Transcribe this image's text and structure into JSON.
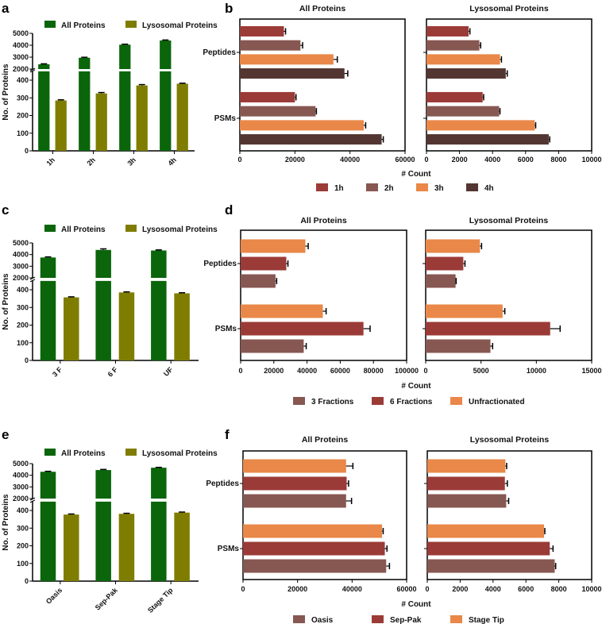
{
  "panel_letters": [
    "a",
    "b",
    "c",
    "d",
    "e",
    "f"
  ],
  "chart_data": [
    {
      "panel": "a",
      "type": "bar",
      "orientation": "vertical",
      "categories": [
        "1h",
        "2h",
        "3h",
        "4h"
      ],
      "ylabel": "No. of Proteins",
      "y_axis_break": [
        450,
        2000
      ],
      "y_ticks_lower": [
        "0",
        "100",
        "200",
        "300",
        "400"
      ],
      "y_ticks_upper": [
        "2000",
        "3000",
        "4000",
        "5000"
      ],
      "legend": "top",
      "series": [
        {
          "name": "All Proteins",
          "color": "#0b650b",
          "values": [
            2400,
            2950,
            4050,
            4400
          ],
          "errors": [
            40,
            40,
            40,
            40
          ]
        },
        {
          "name": "Lysosomal Proteins",
          "color": "#7f7d00",
          "values": [
            285,
            325,
            370,
            380
          ],
          "errors": [
            4,
            5,
            5,
            3
          ]
        }
      ]
    },
    {
      "panel": "b",
      "type": "bar",
      "orientation": "horizontal",
      "xlabel": "# Count",
      "categories": [
        "Peptides",
        "PSMs"
      ],
      "legend": [
        {
          "name": "1h",
          "color": "#9b3b37"
        },
        {
          "name": "2h",
          "color": "#875752"
        },
        {
          "name": "3h",
          "color": "#e98848"
        },
        {
          "name": "4h",
          "color": "#533631"
        }
      ],
      "subplots": [
        {
          "title": "All Proteins",
          "xlim": [
            0,
            60000
          ],
          "xticks": [
            "0",
            "20000",
            "40000",
            "60000"
          ],
          "series": [
            {
              "name": "1h",
              "values": [
                16000,
                20000
              ],
              "errors": [
                600,
                400
              ]
            },
            {
              "name": "2h",
              "values": [
                22000,
                27500
              ],
              "errors": [
                800,
                300
              ]
            },
            {
              "name": "3h",
              "values": [
                34000,
                45000
              ],
              "errors": [
                1400,
                700
              ]
            },
            {
              "name": "4h",
              "values": [
                38000,
                51500
              ],
              "errors": [
                1200,
                600
              ]
            }
          ]
        },
        {
          "title": "Lysosomal Proteins",
          "xlim": [
            0,
            10000
          ],
          "xticks": [
            "0",
            "2000",
            "4000",
            "6000",
            "8000",
            "10000"
          ],
          "series": [
            {
              "name": "1h",
              "values": [
                2550,
                3400
              ],
              "errors": [
                80,
                60
              ]
            },
            {
              "name": "2h",
              "values": [
                3200,
                4400
              ],
              "errors": [
                80,
                50
              ]
            },
            {
              "name": "3h",
              "values": [
                4450,
                6550
              ],
              "errors": [
                90,
                60
              ]
            },
            {
              "name": "4h",
              "values": [
                4800,
                7400
              ],
              "errors": [
                90,
                60
              ]
            }
          ]
        }
      ]
    },
    {
      "panel": "c",
      "type": "bar",
      "orientation": "vertical",
      "categories": [
        "3 F",
        "6 F",
        "UF"
      ],
      "ylabel": "No. of Proteins",
      "y_axis_break": [
        450,
        2000
      ],
      "y_ticks_lower": [
        "0",
        "100",
        "200",
        "300",
        "400"
      ],
      "y_ticks_upper": [
        "2000",
        "3000",
        "4000",
        "5000"
      ],
      "legend": "top",
      "series": [
        {
          "name": "All Proteins",
          "color": "#0b650b",
          "values": [
            3750,
            4400,
            4350
          ],
          "errors": [
            50,
            90,
            50
          ]
        },
        {
          "name": "Lysosomal Proteins",
          "color": "#7f7d00",
          "values": [
            357,
            385,
            380
          ],
          "errors": [
            3,
            3,
            3
          ]
        }
      ]
    },
    {
      "panel": "d",
      "type": "bar",
      "orientation": "horizontal",
      "xlabel": "# Count",
      "categories": [
        "Peptides",
        "PSMs"
      ],
      "legend": [
        {
          "name": "3 Fractions",
          "color": "#875752"
        },
        {
          "name": "6 Fractions",
          "color": "#9b3b37"
        },
        {
          "name": "Unfractionated",
          "color": "#e98848"
        }
      ],
      "subplots": [
        {
          "title": "All Proteins",
          "xlim": [
            0,
            100000
          ],
          "xticks": [
            "0",
            "20000",
            "40000",
            "60000",
            "80000",
            "100000"
          ],
          "series": [
            {
              "name": "3 Fractions",
              "values": [
                21000,
                38000
              ],
              "errors": [
                700,
                1500
              ]
            },
            {
              "name": "6 Fractions",
              "values": [
                27500,
                74000
              ],
              "errors": [
                1000,
                4000
              ]
            },
            {
              "name": "Unfractionated",
              "values": [
                39000,
                49500
              ],
              "errors": [
                1700,
                2000
              ]
            }
          ]
        },
        {
          "title": "Lysosomal Proteins",
          "xlim": [
            0,
            15000
          ],
          "xticks": [
            "0",
            "5000",
            "10000",
            "15000"
          ],
          "series": [
            {
              "name": "3 Fractions",
              "values": [
                2700,
                5850
              ],
              "errors": [
                50,
                200
              ]
            },
            {
              "name": "6 Fractions",
              "values": [
                3400,
                11250
              ],
              "errors": [
                150,
                900
              ]
            },
            {
              "name": "Unfractionated",
              "values": [
                4900,
                6950
              ],
              "errors": [
                150,
                200
              ]
            }
          ]
        }
      ]
    },
    {
      "panel": "e",
      "type": "bar",
      "orientation": "vertical",
      "categories": [
        "Oasis",
        "Sep-Pak",
        "Stage Tip"
      ],
      "ylabel": "No. of Proteins",
      "y_axis_break": [
        450,
        2000
      ],
      "y_ticks_lower": [
        "0",
        "100",
        "200",
        "300",
        "400"
      ],
      "y_ticks_upper": [
        "2000",
        "3000",
        "4000",
        "5000"
      ],
      "legend": "top",
      "series": [
        {
          "name": "All Proteins",
          "color": "#0b650b",
          "values": [
            4300,
            4450,
            4650
          ],
          "errors": [
            40,
            50,
            30
          ]
        },
        {
          "name": "Lysosomal Proteins",
          "color": "#7f7d00",
          "values": [
            377,
            381,
            388
          ],
          "errors": [
            3,
            3,
            3
          ]
        }
      ]
    },
    {
      "panel": "f",
      "type": "bar",
      "orientation": "horizontal",
      "xlabel": "# Count",
      "categories": [
        "Peptides",
        "PSMs"
      ],
      "legend": [
        {
          "name": "Oasis",
          "color": "#875752"
        },
        {
          "name": "Sep-Pak",
          "color": "#9b3b37"
        },
        {
          "name": "Stage Tip",
          "color": "#e98848"
        }
      ],
      "subplots": [
        {
          "title": "All Proteins",
          "xlim": [
            0,
            60000
          ],
          "xticks": [
            "0",
            "20000",
            "40000",
            "60000"
          ],
          "series": [
            {
              "name": "Oasis",
              "values": [
                37800,
                52500
              ],
              "errors": [
                2000,
                1200
              ]
            },
            {
              "name": "Sep-Pak",
              "values": [
                38000,
                52000
              ],
              "errors": [
                700,
                800
              ]
            },
            {
              "name": "Stage Tip",
              "values": [
                37800,
                51000
              ],
              "errors": [
                2500,
                400
              ]
            }
          ]
        },
        {
          "title": "Lysosomal Proteins",
          "xlim": [
            0,
            10000
          ],
          "xticks": [
            "0",
            "2000",
            "4000",
            "6000",
            "8000",
            "10000"
          ],
          "series": [
            {
              "name": "Oasis",
              "values": [
                4800,
                7750
              ],
              "errors": [
                150,
                60
              ]
            },
            {
              "name": "Sep-Pak",
              "values": [
                4720,
                7450
              ],
              "errors": [
                150,
                200
              ]
            },
            {
              "name": "Stage Tip",
              "values": [
                4750,
                7100
              ],
              "errors": [
                80,
                50
              ]
            }
          ]
        }
      ]
    }
  ]
}
